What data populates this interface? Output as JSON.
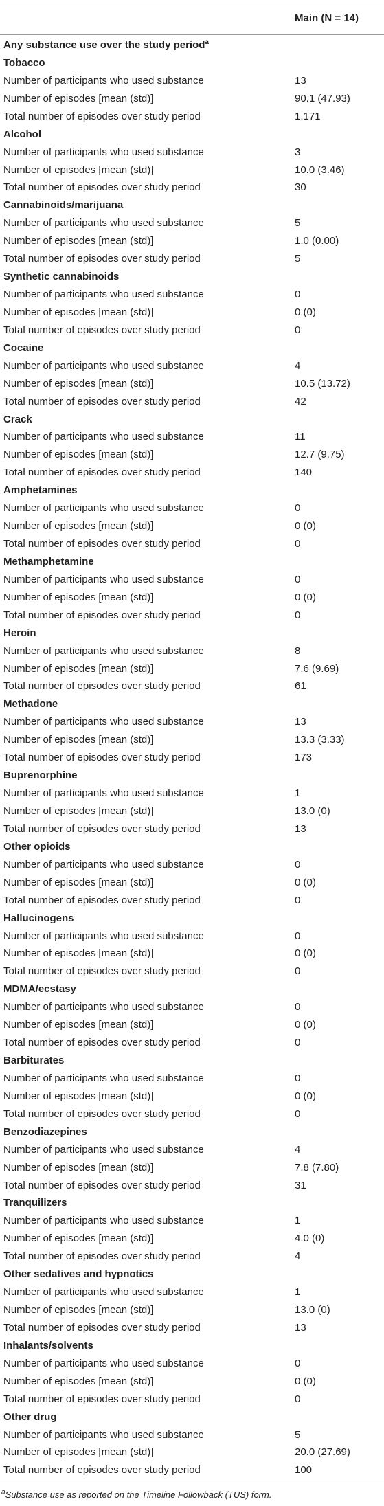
{
  "table": {
    "header": {
      "column": "Main (N = 14)"
    },
    "section": {
      "title": "Any substance use over the study period",
      "note_marker": "a"
    },
    "row_labels": [
      "Number of participants who used substance",
      "Number of episodes [mean (std)]",
      "Total number of episodes over study period"
    ],
    "groups": [
      {
        "name": "Tobacco",
        "values": [
          "13",
          "90.1 (47.93)",
          "1,171"
        ]
      },
      {
        "name": "Alcohol",
        "values": [
          "3",
          "10.0 (3.46)",
          "30"
        ]
      },
      {
        "name": "Cannabinoids/marijuana",
        "values": [
          "5",
          "1.0 (0.00)",
          "5"
        ]
      },
      {
        "name": "Synthetic cannabinoids",
        "values": [
          "0",
          "0 (0)",
          "0"
        ]
      },
      {
        "name": "Cocaine",
        "values": [
          "4",
          "10.5 (13.72)",
          "42"
        ]
      },
      {
        "name": "Crack",
        "values": [
          "11",
          "12.7 (9.75)",
          "140"
        ]
      },
      {
        "name": "Amphetamines",
        "values": [
          "0",
          "0 (0)",
          "0"
        ]
      },
      {
        "name": "Methamphetamine",
        "values": [
          "0",
          "0 (0)",
          "0"
        ]
      },
      {
        "name": "Heroin",
        "values": [
          "8",
          "7.6 (9.69)",
          "61"
        ]
      },
      {
        "name": "Methadone",
        "values": [
          "13",
          "13.3 (3.33)",
          "173"
        ]
      },
      {
        "name": "Buprenorphine",
        "values": [
          "1",
          "13.0 (0)",
          "13"
        ]
      },
      {
        "name": "Other opioids",
        "values": [
          "0",
          "0 (0)",
          "0"
        ]
      },
      {
        "name": "Hallucinogens",
        "values": [
          "0",
          "0 (0)",
          "0"
        ]
      },
      {
        "name": "MDMA/ecstasy",
        "values": [
          "0",
          "0 (0)",
          "0"
        ]
      },
      {
        "name": "Barbiturates",
        "values": [
          "0",
          "0 (0)",
          "0"
        ]
      },
      {
        "name": "Benzodiazepines",
        "values": [
          "4",
          "7.8 (7.80)",
          "31"
        ]
      },
      {
        "name": "Tranquilizers",
        "values": [
          "1",
          "4.0 (0)",
          "4"
        ]
      },
      {
        "name": "Other sedatives and hypnotics",
        "values": [
          "1",
          "13.0 (0)",
          "13"
        ]
      },
      {
        "name": "Inhalants/solvents",
        "values": [
          "0",
          "0 (0)",
          "0"
        ]
      },
      {
        "name": "Other drug",
        "values": [
          "5",
          "20.0 (27.69)",
          "100"
        ]
      }
    ],
    "footnote": {
      "marker": "a",
      "text": "Substance use as reported on the Timeline Followback (TUS) form."
    }
  }
}
